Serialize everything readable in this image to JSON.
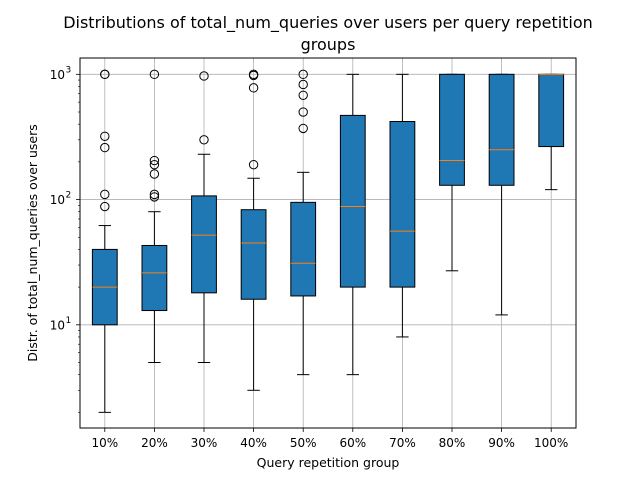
{
  "chart_data": {
    "type": "boxplot",
    "title_line1": "Distributions of total_num_queries over users per query repetition",
    "title_line2": "groups",
    "xlabel": "Query repetition group",
    "ylabel": "Distr. of total_num_queries over users",
    "yscale": "log",
    "ylim": [
      1.5,
      1350
    ],
    "y_ticks": [
      {
        "base": "10",
        "exp": "1",
        "value": 10
      },
      {
        "base": "10",
        "exp": "2",
        "value": 100
      },
      {
        "base": "10",
        "exp": "3",
        "value": 1000
      }
    ],
    "grid": true,
    "colors": {
      "box_fill": "#1f77b4",
      "median": "#ff7f0e",
      "grid": "#b0b0b0",
      "edge": "#000000"
    },
    "categories": [
      "10%",
      "20%",
      "30%",
      "40%",
      "50%",
      "60%",
      "70%",
      "80%",
      "90%",
      "100%"
    ],
    "boxes": [
      {
        "whisker_low": 2,
        "q1": 10,
        "median": 20,
        "q3": 40,
        "whisker_high": 62,
        "outliers": [
          88,
          110,
          260,
          320,
          1000,
          1000
        ]
      },
      {
        "whisker_low": 5,
        "q1": 13,
        "median": 26,
        "q3": 43,
        "whisker_high": 80,
        "outliers": [
          105,
          110,
          160,
          190,
          205,
          1000
        ]
      },
      {
        "whisker_low": 5,
        "q1": 18,
        "median": 52,
        "q3": 107,
        "whisker_high": 230,
        "outliers": [
          300,
          970
        ]
      },
      {
        "whisker_low": 3,
        "q1": 16,
        "median": 45,
        "q3": 83,
        "whisker_high": 148,
        "outliers": [
          190,
          780,
          980,
          1000
        ]
      },
      {
        "whisker_low": 4,
        "q1": 17,
        "median": 31,
        "q3": 95,
        "whisker_high": 165,
        "outliers": [
          370,
          500,
          680,
          830,
          1000
        ]
      },
      {
        "whisker_low": 4,
        "q1": 20,
        "median": 88,
        "q3": 470,
        "whisker_high": 1000,
        "outliers": []
      },
      {
        "whisker_low": 8,
        "q1": 20,
        "median": 56,
        "q3": 420,
        "whisker_high": 1000,
        "outliers": []
      },
      {
        "whisker_low": 27,
        "q1": 130,
        "median": 205,
        "q3": 1000,
        "whisker_high": 1000,
        "outliers": []
      },
      {
        "whisker_low": 12,
        "q1": 130,
        "median": 250,
        "q3": 1000,
        "whisker_high": 1000,
        "outliers": []
      },
      {
        "whisker_low": 120,
        "q1": 265,
        "median": 1000,
        "q3": 1000,
        "whisker_high": 1000,
        "outliers": []
      }
    ]
  }
}
